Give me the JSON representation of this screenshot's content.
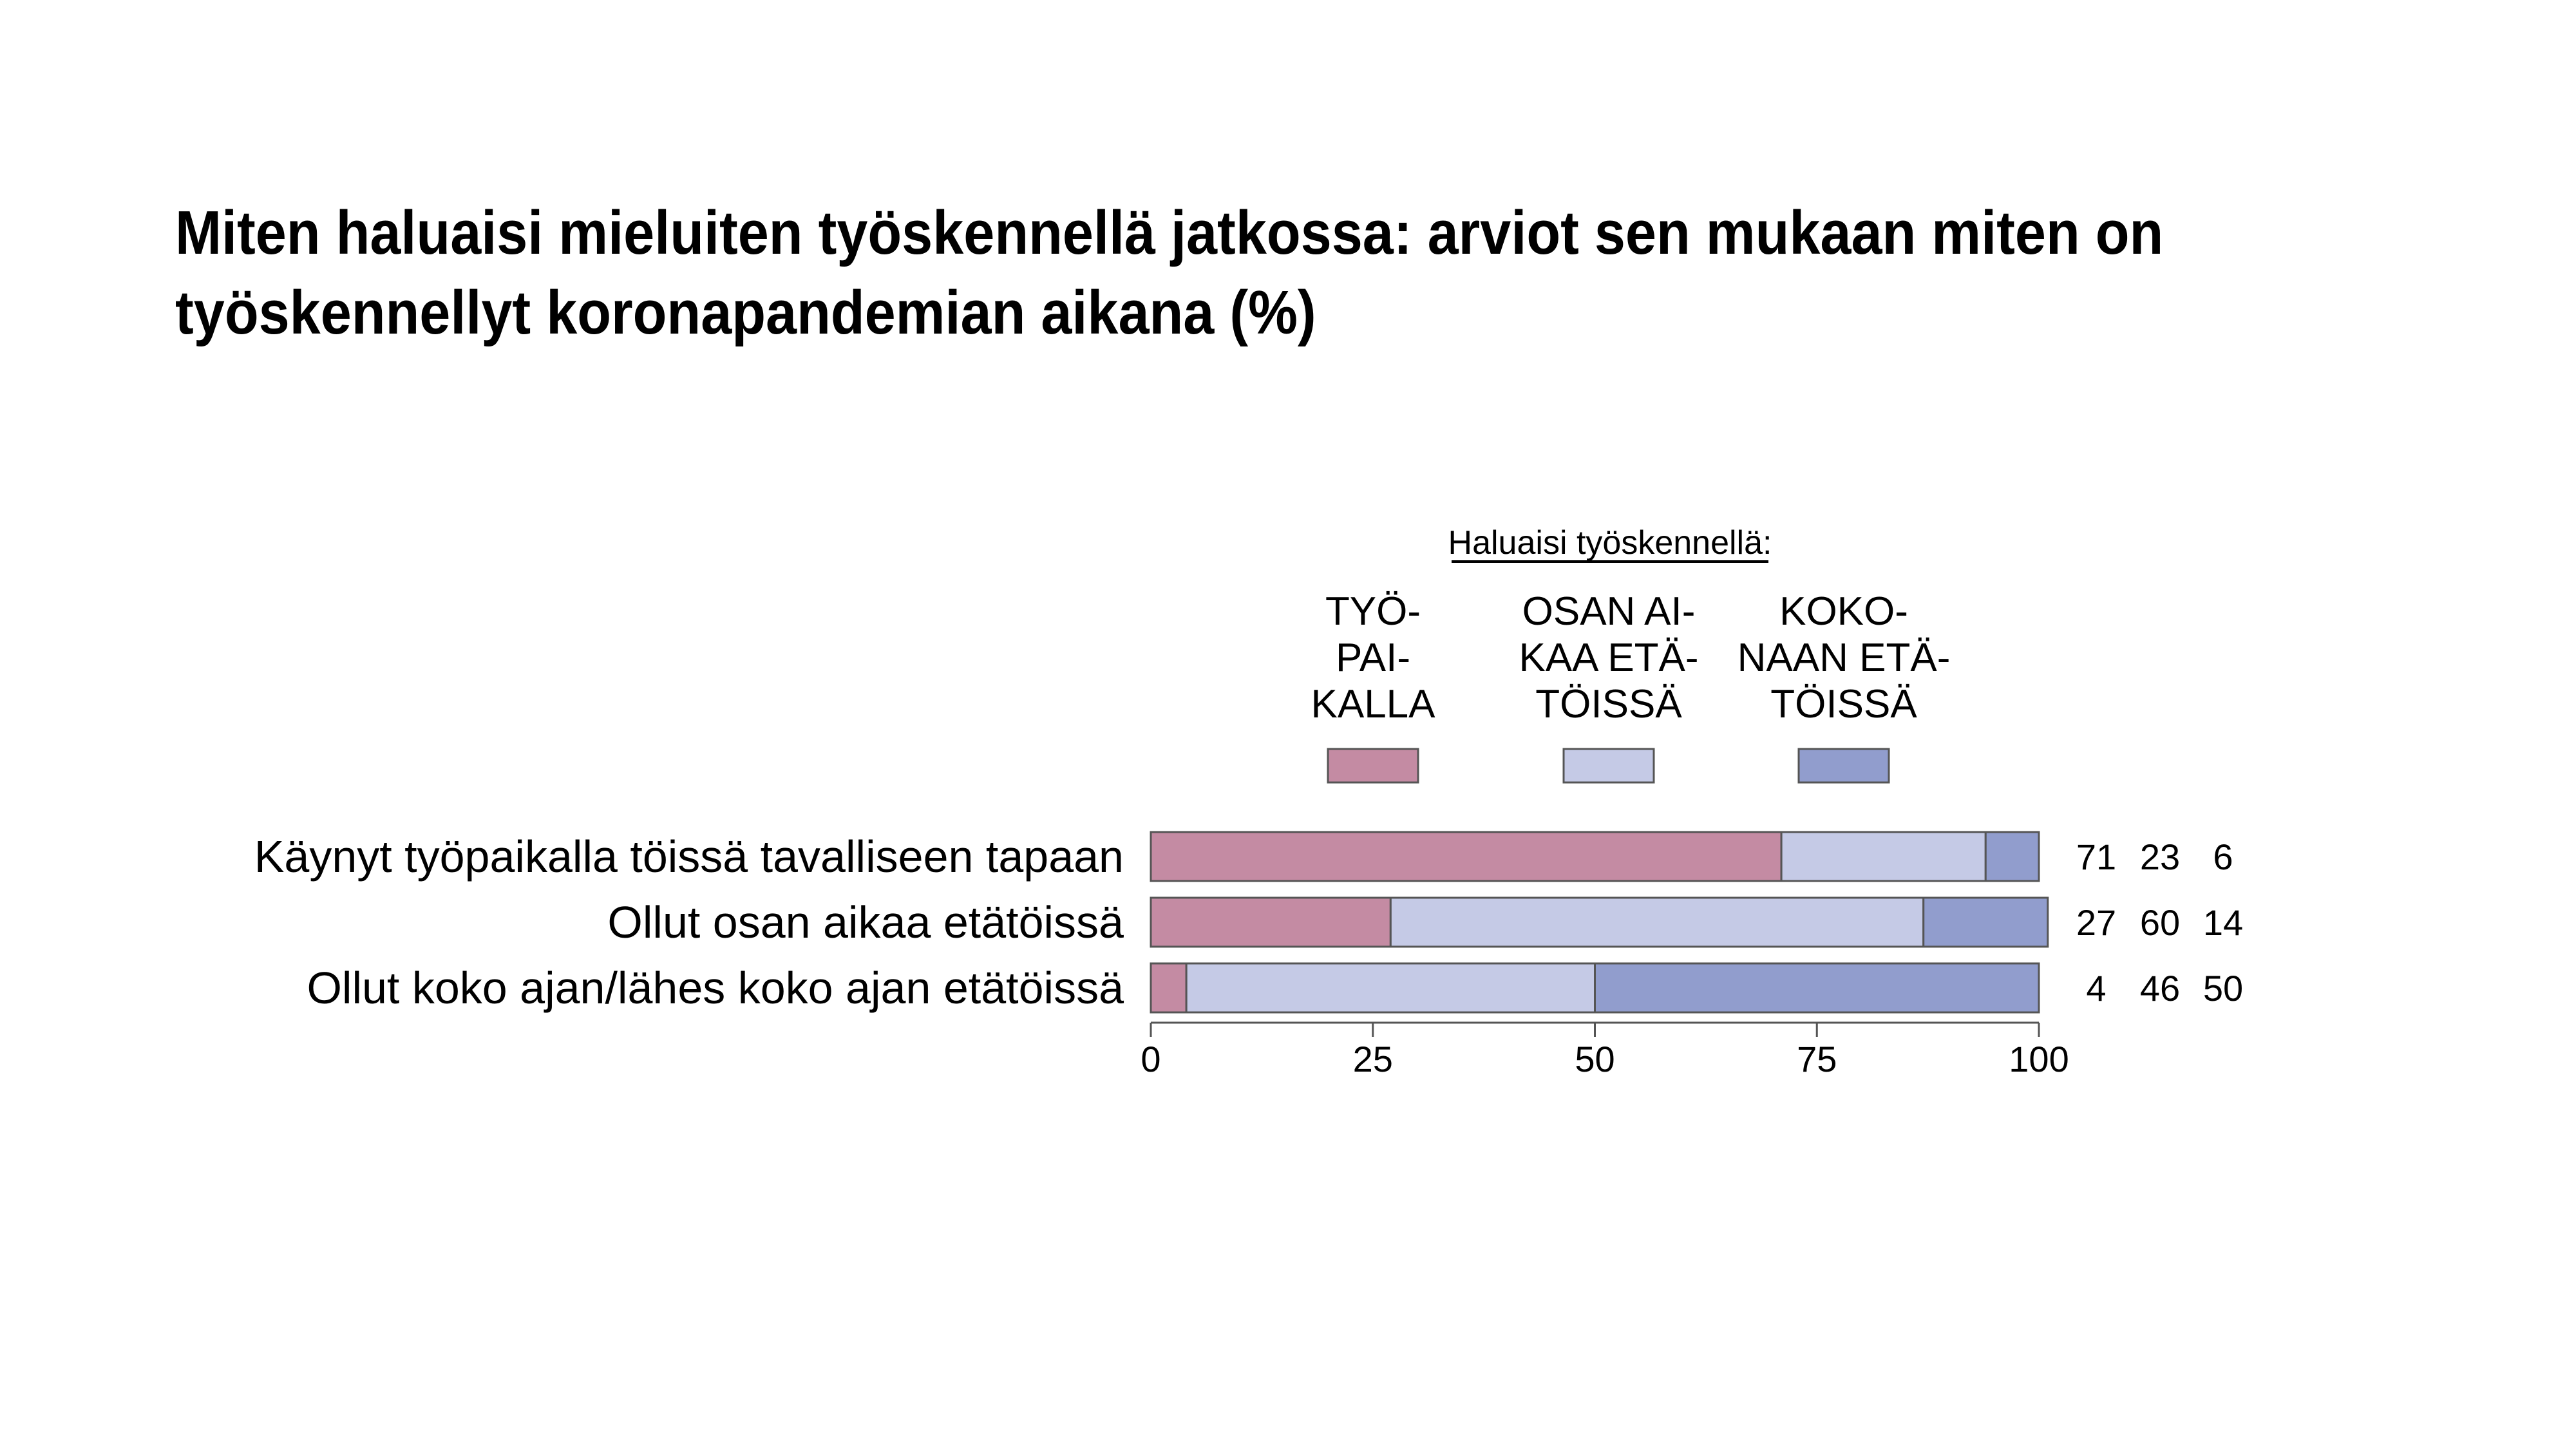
{
  "title_lines": [
    "Miten haluaisi mieluiten työskennellä jatkossa: arviot sen mukaan miten on",
    "työskennellyt koronapandemian aikana (%)"
  ],
  "chart_data": {
    "type": "bar",
    "orientation": "horizontal",
    "stacked": true,
    "title": "Miten haluaisi mieluiten työskennellä jatkossa: arviot sen mukaan miten on työskennellyt koronapandemian aikana (%)",
    "legend_heading": "Haluaisi työskennellä:",
    "legend_placement": "top",
    "categories": [
      "Käynyt työpaikalla töissä tavalliseen tapaan",
      "Ollut osan aikaa etätöissä",
      "Ollut koko ajan/lähes koko ajan etätöissä"
    ],
    "series": [
      {
        "name": "TYÖPAIKALLA",
        "label_lines": [
          "TYÖ-",
          "PAI-",
          "KALLA"
        ],
        "color": "#c48ba3",
        "values": [
          71,
          27,
          4
        ]
      },
      {
        "name": "OSAN AIKAA ETÄTÖISSÄ",
        "label_lines": [
          "OSAN AI-",
          "KAA ETÄ-",
          "TÖISSÄ"
        ],
        "color": "#c5cae6",
        "values": [
          23,
          60,
          46
        ]
      },
      {
        "name": "KOKONAAN ETÄTÖISSÄ",
        "label_lines": [
          "KOKO-",
          "NAAN ETÄ-",
          "TÖISSÄ"
        ],
        "color": "#919dcd",
        "values": [
          6,
          14,
          50
        ]
      }
    ],
    "value_labels": [
      [
        "71",
        "23",
        "6"
      ],
      [
        "27",
        "60",
        "14"
      ],
      [
        "4",
        "46",
        "50"
      ]
    ],
    "xlim": [
      0,
      100
    ],
    "xticks": [
      0,
      25,
      50,
      75,
      100
    ],
    "xtick_labels": [
      "0",
      "25",
      "50",
      "75",
      "100"
    ],
    "grid": false
  }
}
